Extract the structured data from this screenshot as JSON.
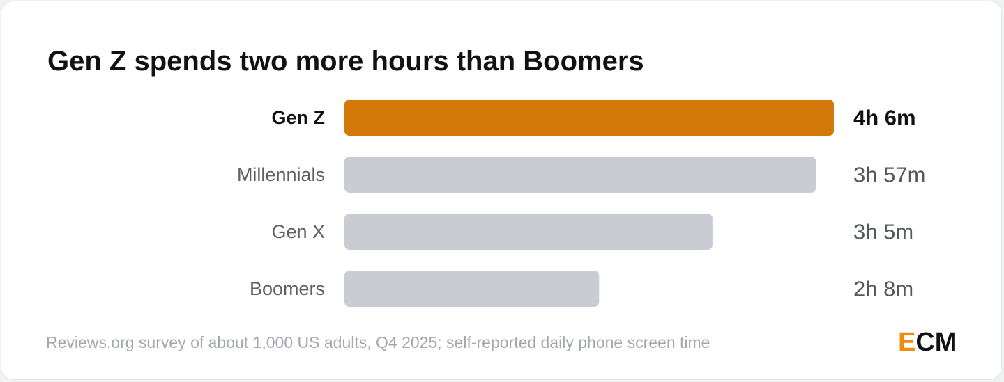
{
  "chart_data": {
    "type": "bar",
    "orientation": "horizontal",
    "title": "Gen Z spends two more hours than Boomers",
    "categories": [
      "Gen Z",
      "Millennials",
      "Gen X",
      "Boomers"
    ],
    "values": [
      246,
      237,
      185,
      128
    ],
    "value_unit": "minutes",
    "value_labels": [
      "4h 6m",
      "3h 57m",
      "3h 5m",
      "2h 8m"
    ],
    "highlight_index": 0,
    "xlim": [
      0,
      246
    ],
    "grid": false,
    "legend": "none"
  },
  "colors": {
    "highlight": "#d4780a",
    "default": "#c9ccd3",
    "logo_accent": "#f08a12"
  },
  "source": "Reviews.org survey of about 1,000 US adults, Q4 2025; self-reported daily phone screen time",
  "logo": {
    "accent_letter": "E",
    "rest": "CM"
  }
}
